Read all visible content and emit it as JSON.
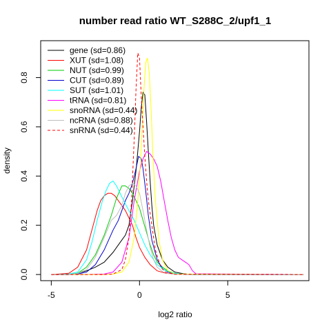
{
  "chart_data": {
    "type": "line",
    "title": "number read ratio WT_S288C_2/upf1_1",
    "xlabel": "log2 ratio",
    "ylabel": "density",
    "xlim": [
      -5.6,
      9.6
    ],
    "ylim": [
      -0.025,
      0.95
    ],
    "xticks": [
      -5,
      0,
      5
    ],
    "xtick_labels": [
      "-5",
      "0",
      "5"
    ],
    "yticks": [
      0.0,
      0.2,
      0.4,
      0.6,
      0.8
    ],
    "ytick_labels": [
      "0.0",
      "0.2",
      "0.4",
      "0.6",
      "0.8"
    ],
    "grid": false,
    "legend_position": "top-left",
    "series": [
      {
        "name": "gene (sd=0.86)",
        "color": "#000000",
        "dash": false,
        "x": [
          -5,
          -4,
          -3.5,
          -3,
          -2.5,
          -2,
          -1.5,
          -1.2,
          -1,
          -0.8,
          -0.6,
          -0.5,
          -0.4,
          -0.3,
          -0.2,
          -0.1,
          0,
          0.1,
          0.2,
          0.3,
          0.4,
          0.5,
          0.6,
          0.7,
          0.8,
          1.0,
          1.3,
          1.6,
          2.0,
          2.5,
          3,
          4,
          9.3
        ],
        "y": [
          0,
          0,
          0.005,
          0.015,
          0.03,
          0.05,
          0.09,
          0.12,
          0.14,
          0.16,
          0.2,
          0.25,
          0.3,
          0.36,
          0.42,
          0.5,
          0.58,
          0.68,
          0.74,
          0.73,
          0.62,
          0.5,
          0.38,
          0.28,
          0.2,
          0.12,
          0.06,
          0.03,
          0.01,
          0.003,
          0,
          0,
          0
        ]
      },
      {
        "name": "XUT (sd=1.08)",
        "color": "#ff0000",
        "dash": false,
        "x": [
          -5,
          -4,
          -3.5,
          -3,
          -2.7,
          -2.4,
          -2.2,
          -2.0,
          -1.8,
          -1.6,
          -1.4,
          -1.2,
          -1.0,
          -0.8,
          -0.6,
          -0.4,
          -0.2,
          0,
          0.3,
          0.6,
          1.0,
          1.5,
          2.0,
          2.5,
          3,
          9.3
        ],
        "y": [
          0,
          0.005,
          0.03,
          0.1,
          0.18,
          0.26,
          0.3,
          0.32,
          0.33,
          0.33,
          0.32,
          0.3,
          0.28,
          0.26,
          0.23,
          0.2,
          0.15,
          0.11,
          0.07,
          0.04,
          0.015,
          0.005,
          0.002,
          0.001,
          0,
          0
        ]
      },
      {
        "name": "NUT (sd=0.99)",
        "color": "#00cc00",
        "dash": false,
        "x": [
          -5,
          -4,
          -3.5,
          -3,
          -2.5,
          -2.0,
          -1.6,
          -1.3,
          -1.0,
          -0.8,
          -0.6,
          -0.4,
          -0.2,
          0,
          0.2,
          0.4,
          0.6,
          0.8,
          1.0,
          1.3,
          1.6,
          2.0,
          2.5,
          3,
          9.3
        ],
        "y": [
          0,
          0,
          0.005,
          0.03,
          0.08,
          0.16,
          0.24,
          0.31,
          0.36,
          0.36,
          0.35,
          0.33,
          0.3,
          0.27,
          0.22,
          0.17,
          0.12,
          0.08,
          0.05,
          0.03,
          0.015,
          0.005,
          0.001,
          0,
          0
        ]
      },
      {
        "name": "CUT (sd=0.89)",
        "color": "#0000cc",
        "dash": false,
        "x": [
          -5,
          -4,
          -3.5,
          -3,
          -2.5,
          -2.0,
          -1.5,
          -1.2,
          -1.0,
          -0.8,
          -0.6,
          -0.4,
          -0.2,
          -0.05,
          0.1,
          0.2,
          0.35,
          0.5,
          0.7,
          1.0,
          1.3,
          1.6,
          2.0,
          2.5,
          9.3
        ],
        "y": [
          0,
          0,
          0.002,
          0.01,
          0.04,
          0.1,
          0.18,
          0.22,
          0.26,
          0.3,
          0.33,
          0.37,
          0.43,
          0.48,
          0.47,
          0.43,
          0.34,
          0.24,
          0.14,
          0.06,
          0.025,
          0.01,
          0.003,
          0,
          0
        ]
      },
      {
        "name": "SUT (sd=1.01)",
        "color": "#00ffff",
        "dash": false,
        "x": [
          -5,
          -4,
          -3.5,
          -3,
          -2.7,
          -2.4,
          -2.1,
          -1.9,
          -1.7,
          -1.5,
          -1.3,
          -1.1,
          -0.9,
          -0.6,
          -0.3,
          0,
          0.3,
          0.6,
          1.0,
          1.5,
          2.0,
          2.5,
          3,
          9.3
        ],
        "y": [
          0,
          0.002,
          0.01,
          0.06,
          0.13,
          0.22,
          0.3,
          0.34,
          0.37,
          0.38,
          0.36,
          0.33,
          0.3,
          0.26,
          0.22,
          0.17,
          0.12,
          0.08,
          0.04,
          0.015,
          0.005,
          0.001,
          0,
          0
        ]
      },
      {
        "name": "tRNA (sd=0.81)",
        "color": "#ff00ff",
        "dash": false,
        "x": [
          -5,
          -3,
          -2,
          -1.5,
          -1.0,
          -0.6,
          -0.3,
          0,
          0.2,
          0.4,
          0.6,
          0.8,
          1.0,
          1.2,
          1.4,
          1.6,
          1.8,
          2.0,
          2.2,
          2.4,
          2.6,
          2.8,
          3.0,
          3.2,
          9.3
        ],
        "y": [
          0,
          0,
          0.002,
          0.01,
          0.05,
          0.15,
          0.3,
          0.42,
          0.47,
          0.5,
          0.49,
          0.47,
          0.44,
          0.38,
          0.3,
          0.22,
          0.15,
          0.1,
          0.07,
          0.06,
          0.05,
          0.04,
          0.015,
          0.003,
          0
        ]
      },
      {
        "name": "snoRNA (sd=0.44)",
        "color": "#ffff00",
        "dash": false,
        "x": [
          -5,
          -2,
          -1.5,
          -1.0,
          -0.6,
          -0.3,
          -0.1,
          0.05,
          0.15,
          0.25,
          0.35,
          0.45,
          0.55,
          0.65,
          0.75,
          0.9,
          1.1,
          1.3,
          1.6,
          2.0,
          9.3
        ],
        "y": [
          0,
          0,
          0.002,
          0.01,
          0.05,
          0.15,
          0.3,
          0.45,
          0.6,
          0.75,
          0.86,
          0.88,
          0.82,
          0.68,
          0.5,
          0.3,
          0.14,
          0.06,
          0.015,
          0.002,
          0
        ]
      },
      {
        "name": "ncRNA (sd=0.88)",
        "color": "#bebebe",
        "dash": false,
        "x": [
          -5,
          -4,
          -3.5,
          -3,
          -2.5,
          -2.0,
          -1.6,
          -1.3,
          -1.0,
          -0.8,
          -0.6,
          -0.4,
          -0.2,
          0,
          0.2,
          0.4,
          0.6,
          0.8,
          1.0,
          1.3,
          1.6,
          2.0,
          2.5,
          9.3
        ],
        "y": [
          0,
          0,
          0.004,
          0.02,
          0.07,
          0.15,
          0.22,
          0.24,
          0.28,
          0.33,
          0.36,
          0.37,
          0.36,
          0.33,
          0.26,
          0.18,
          0.11,
          0.06,
          0.03,
          0.012,
          0.004,
          0.001,
          0,
          0
        ]
      },
      {
        "name": "snRNA (sd=0.44)",
        "color": "#ff0000",
        "dash": true,
        "x": [
          -5,
          -2,
          -1.5,
          -1.0,
          -0.8,
          -0.6,
          -0.45,
          -0.3,
          -0.2,
          -0.1,
          0,
          0.1,
          0.2,
          0.3,
          0.4,
          0.5,
          0.7,
          0.9,
          1.2,
          1.5,
          2.0,
          9.3
        ],
        "y": [
          0,
          0,
          0.002,
          0.02,
          0.06,
          0.15,
          0.3,
          0.55,
          0.75,
          0.9,
          0.88,
          0.72,
          0.6,
          0.48,
          0.38,
          0.3,
          0.2,
          0.1,
          0.03,
          0.008,
          0.001,
          0
        ]
      }
    ]
  }
}
